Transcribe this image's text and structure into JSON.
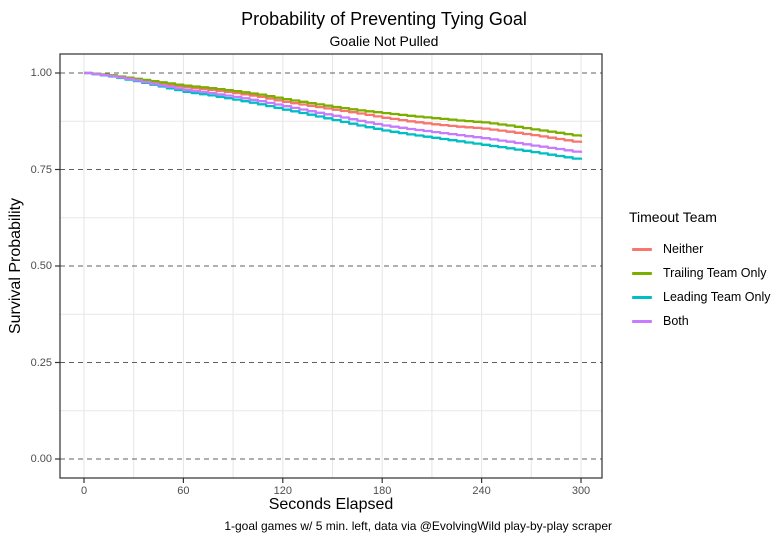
{
  "chart_data": {
    "type": "line",
    "title": "Probability of Preventing Tying Goal",
    "subtitle": "Goalie Not Pulled",
    "xlabel": "Seconds Elapsed",
    "ylabel": "Survival Probability",
    "caption": "1-goal games w/ 5 min. left, data via @EvolvingWild play-by-play scraper",
    "legend_title": "Timeout Team",
    "legend_position": "right",
    "xlim": [
      0,
      300
    ],
    "ylim": [
      0,
      1
    ],
    "x_ticks": [
      0,
      60,
      120,
      180,
      240,
      300
    ],
    "x_tick_labels": [
      "0",
      "60",
      "120",
      "180",
      "240",
      "300"
    ],
    "x_minor_ticks": [
      30,
      90,
      150,
      210,
      270
    ],
    "y_ticks": [
      0,
      0.25,
      0.5,
      0.75,
      1
    ],
    "y_tick_labels": [
      "0.00",
      "0.25",
      "0.50",
      "0.75",
      "1.00"
    ],
    "y_minor_ticks": [
      0.125,
      0.375,
      0.625,
      0.875
    ],
    "grid": {
      "horizontal_major": "dashed",
      "horizontal_minor": "solid-light",
      "vertical": "solid-light"
    },
    "curve_style": "survival-step",
    "x": [
      0,
      15,
      30,
      45,
      60,
      75,
      90,
      105,
      120,
      135,
      150,
      165,
      180,
      195,
      210,
      225,
      240,
      255,
      270,
      285,
      300
    ],
    "series": [
      {
        "name": "Neither",
        "color": "#F8766D",
        "values": [
          1.0,
          0.993,
          0.983,
          0.972,
          0.963,
          0.956,
          0.948,
          0.938,
          0.925,
          0.915,
          0.905,
          0.895,
          0.884,
          0.875,
          0.867,
          0.861,
          0.856,
          0.848,
          0.839,
          0.829,
          0.819
        ]
      },
      {
        "name": "Trailing Team Only",
        "color": "#7CAE00",
        "values": [
          1.0,
          0.994,
          0.985,
          0.976,
          0.967,
          0.961,
          0.953,
          0.944,
          0.932,
          0.922,
          0.912,
          0.903,
          0.896,
          0.889,
          0.883,
          0.877,
          0.872,
          0.864,
          0.854,
          0.845,
          0.835
        ]
      },
      {
        "name": "Leading Team Only",
        "color": "#00BFC4",
        "values": [
          1.0,
          0.991,
          0.979,
          0.965,
          0.951,
          0.942,
          0.931,
          0.919,
          0.905,
          0.892,
          0.878,
          0.864,
          0.851,
          0.841,
          0.832,
          0.823,
          0.814,
          0.805,
          0.795,
          0.785,
          0.775
        ]
      },
      {
        "name": "Both",
        "color": "#C77CFF",
        "values": [
          1.0,
          0.992,
          0.981,
          0.968,
          0.956,
          0.948,
          0.938,
          0.927,
          0.914,
          0.901,
          0.889,
          0.876,
          0.864,
          0.855,
          0.847,
          0.839,
          0.831,
          0.822,
          0.812,
          0.803,
          0.793
        ]
      }
    ],
    "style": {
      "axis_text_color": "#4d4d4d",
      "grid_major_color": "#606060",
      "grid_minor_color": "#e7e7e7",
      "panel_border_color": "#2f2f2f",
      "tick_mark_color": "#333333",
      "background": "#ffffff"
    }
  }
}
